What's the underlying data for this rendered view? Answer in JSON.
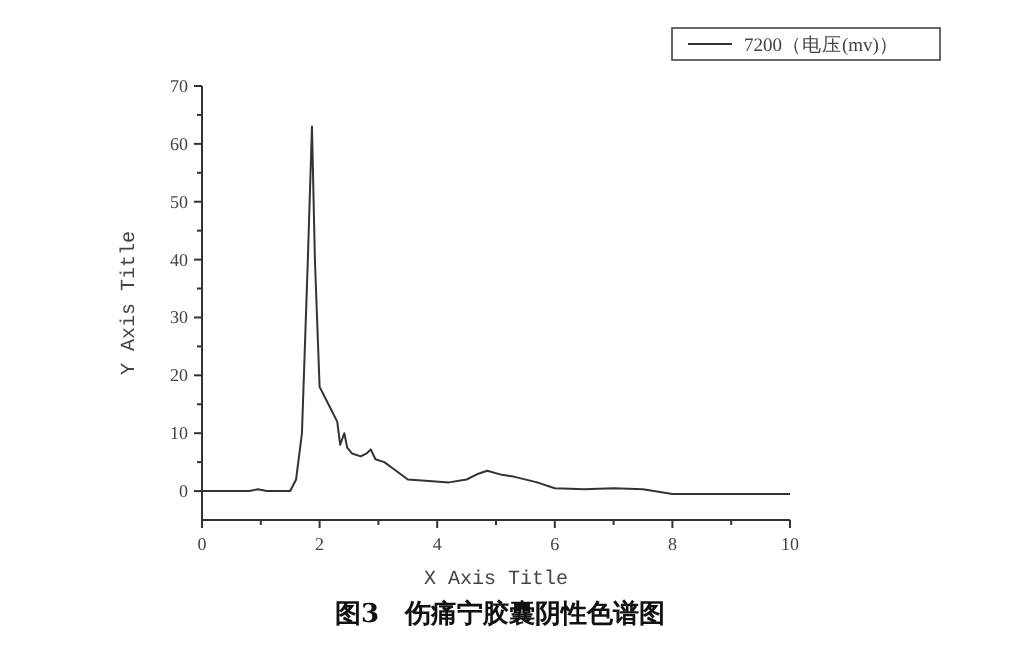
{
  "chart_data": {
    "type": "line",
    "title": "**图3　伤痛宁胶囊阴性色谱图**",
    "xlabel": "X Axis Title",
    "ylabel": "Y Axis Title",
    "legend": "top right",
    "x": [
      0,
      0.5,
      0.8,
      0.95,
      1.1,
      1.5,
      1.6,
      1.7,
      1.8,
      1.87,
      1.92,
      2.0,
      2.15,
      2.3,
      2.35,
      2.42,
      2.47,
      2.55,
      2.7,
      2.8,
      2.87,
      2.95,
      3.1,
      3.3,
      3.5,
      3.8,
      4.2,
      4.5,
      4.7,
      4.85,
      5.1,
      5.3,
      5.7,
      6.0,
      6.5,
      7.0,
      7.5,
      8.0,
      9.0,
      10.0
    ],
    "series": [
      {
        "name": "7200（电压(mv)）",
        "color": "#333333",
        "values": [
          0,
          0,
          0,
          0.3,
          0,
          0,
          2,
          10,
          40,
          63,
          40,
          18,
          15,
          12,
          8,
          10,
          7.5,
          6.5,
          6,
          6.5,
          7.2,
          5.5,
          5,
          3.5,
          2,
          1.8,
          1.5,
          2,
          3,
          3.5,
          2.8,
          2.5,
          1.5,
          0.5,
          0.3,
          0.5,
          0.3,
          -0.5,
          -0.5,
          -0.5
        ]
      }
    ],
    "xlim": [
      0,
      10
    ],
    "ylim": [
      -5,
      70
    ],
    "xticks": [
      0,
      {
        "value": 1,
        "label": null
      },
      2,
      {
        "value": 3,
        "label": null
      },
      4,
      {
        "value": 5,
        "label": null
      },
      6,
      {
        "value": 7,
        "label": null
      },
      8,
      {
        "value": 9,
        "label": null
      },
      10
    ],
    "yticks": [
      0,
      {
        "value": 5,
        "label": null
      },
      10,
      {
        "value": 15,
        "label": null
      },
      20,
      {
        "value": 25,
        "label": null
      },
      30,
      {
        "value": 35,
        "label": null
      },
      40,
      {
        "value": 45,
        "label": null
      },
      50,
      {
        "value": 55,
        "label": null
      },
      60,
      {
        "value": 65,
        "label": null
      },
      70
    ]
  }
}
